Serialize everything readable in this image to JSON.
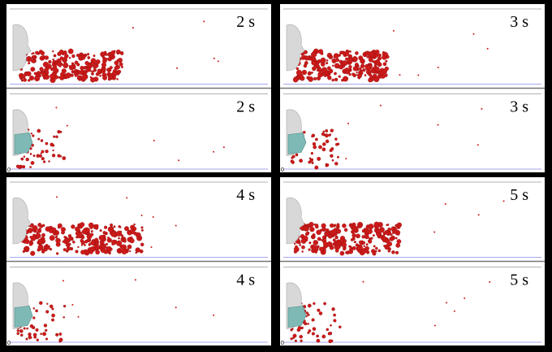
{
  "panels": [
    {
      "top": {
        "label": "2 s"
      },
      "bottom": {
        "label": "2 s",
        "origin": "0"
      }
    },
    {
      "top": {
        "label": "3 s"
      },
      "bottom": {
        "label": "3 s",
        "origin": "0"
      }
    },
    {
      "top": {
        "label": "4 s"
      },
      "bottom": {
        "label": "4 s",
        "origin": "0"
      }
    },
    {
      "top": {
        "label": "5 s"
      },
      "bottom": {
        "label": "5 s",
        "origin": "0"
      }
    }
  ]
}
